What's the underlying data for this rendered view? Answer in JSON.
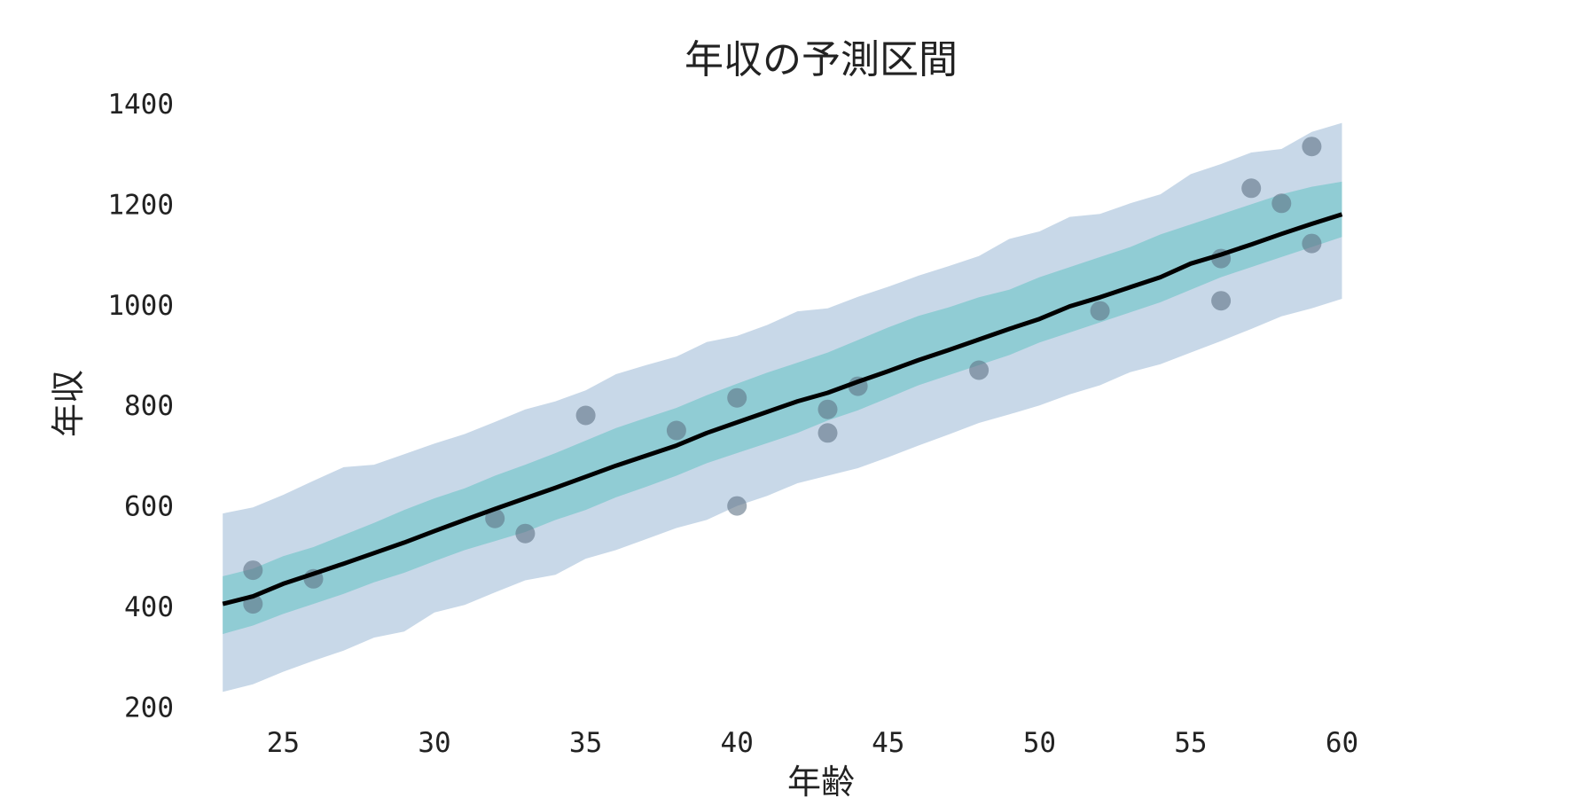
{
  "chart_data": {
    "type": "line",
    "title": "年収の予測区間",
    "xlabel": "年齢",
    "ylabel": "年収",
    "xlim": [
      21.5,
      64
    ],
    "ylim": [
      160,
      1430
    ],
    "xticks": [
      25,
      30,
      35,
      40,
      45,
      50,
      55,
      60
    ],
    "yticks": [
      200,
      400,
      600,
      800,
      1000,
      1200,
      1400
    ],
    "grid": false,
    "legend": "none",
    "colors": {
      "outer_band": "#c8d8e8",
      "inner_band": "#90ccd4",
      "mean_line": "#000000",
      "points": "#5f7385"
    },
    "prediction_band": {
      "x": [
        23,
        24,
        25,
        26,
        27,
        28,
        29,
        30,
        31,
        32,
        33,
        34,
        35,
        36,
        37,
        38,
        39,
        40,
        41,
        42,
        43,
        44,
        45,
        46,
        47,
        48,
        49,
        50,
        51,
        52,
        53,
        54,
        55,
        56,
        57,
        58,
        59,
        60
      ],
      "lower": [
        230,
        245,
        270,
        292,
        312,
        338,
        350,
        388,
        403,
        428,
        452,
        463,
        495,
        512,
        534,
        556,
        572,
        600,
        620,
        645,
        660,
        675,
        697,
        720,
        742,
        765,
        782,
        800,
        822,
        840,
        866,
        882,
        905,
        928,
        952,
        977,
        993,
        1012
      ],
      "upper": [
        585,
        597,
        622,
        650,
        677,
        682,
        703,
        724,
        743,
        767,
        792,
        808,
        830,
        862,
        880,
        897,
        926,
        938,
        960,
        987,
        993,
        1016,
        1036,
        1058,
        1077,
        1097,
        1131,
        1146,
        1175,
        1181,
        1202,
        1220,
        1260,
        1280,
        1303,
        1310,
        1344,
        1362
      ]
    },
    "confidence_band": {
      "x": [
        23,
        24,
        25,
        26,
        27,
        28,
        29,
        30,
        31,
        32,
        33,
        34,
        35,
        36,
        37,
        38,
        39,
        40,
        41,
        42,
        43,
        44,
        45,
        46,
        47,
        48,
        49,
        50,
        51,
        52,
        53,
        54,
        55,
        56,
        57,
        58,
        59,
        60
      ],
      "lower": [
        345,
        362,
        385,
        405,
        425,
        448,
        467,
        490,
        512,
        530,
        548,
        572,
        592,
        617,
        638,
        660,
        685,
        705,
        725,
        745,
        770,
        790,
        815,
        840,
        860,
        880,
        900,
        925,
        945,
        965,
        985,
        1005,
        1030,
        1055,
        1075,
        1095,
        1115,
        1135
      ],
      "upper": [
        460,
        475,
        500,
        518,
        542,
        566,
        592,
        615,
        635,
        660,
        682,
        705,
        730,
        755,
        775,
        795,
        820,
        843,
        865,
        885,
        905,
        930,
        955,
        978,
        995,
        1015,
        1030,
        1055,
        1075,
        1095,
        1115,
        1140,
        1160,
        1180,
        1200,
        1220,
        1235,
        1245
      ]
    },
    "mean_line": {
      "x": [
        23,
        24,
        25,
        26,
        27,
        28,
        29,
        30,
        31,
        32,
        33,
        34,
        35,
        36,
        37,
        38,
        39,
        40,
        41,
        42,
        43,
        44,
        45,
        46,
        47,
        48,
        49,
        50,
        51,
        52,
        53,
        54,
        55,
        56,
        57,
        58,
        59,
        60
      ],
      "y": [
        405,
        420,
        445,
        465,
        485,
        506,
        527,
        550,
        572,
        594,
        615,
        636,
        658,
        680,
        700,
        720,
        745,
        766,
        787,
        808,
        825,
        847,
        868,
        890,
        910,
        931,
        952,
        972,
        997,
        1015,
        1035,
        1055,
        1082,
        1100,
        1120,
        1141,
        1161,
        1180
      ]
    },
    "points": [
      {
        "x": 24,
        "y": 472
      },
      {
        "x": 24,
        "y": 405
      },
      {
        "x": 26,
        "y": 455
      },
      {
        "x": 32,
        "y": 575
      },
      {
        "x": 33,
        "y": 545
      },
      {
        "x": 35,
        "y": 780
      },
      {
        "x": 38,
        "y": 750
      },
      {
        "x": 40,
        "y": 815
      },
      {
        "x": 40,
        "y": 600
      },
      {
        "x": 43,
        "y": 792
      },
      {
        "x": 43,
        "y": 745
      },
      {
        "x": 44,
        "y": 838
      },
      {
        "x": 48,
        "y": 870
      },
      {
        "x": 52,
        "y": 988
      },
      {
        "x": 56,
        "y": 1092
      },
      {
        "x": 56,
        "y": 1008
      },
      {
        "x": 57,
        "y": 1232
      },
      {
        "x": 58,
        "y": 1202
      },
      {
        "x": 59,
        "y": 1315
      },
      {
        "x": 59,
        "y": 1122
      }
    ]
  }
}
